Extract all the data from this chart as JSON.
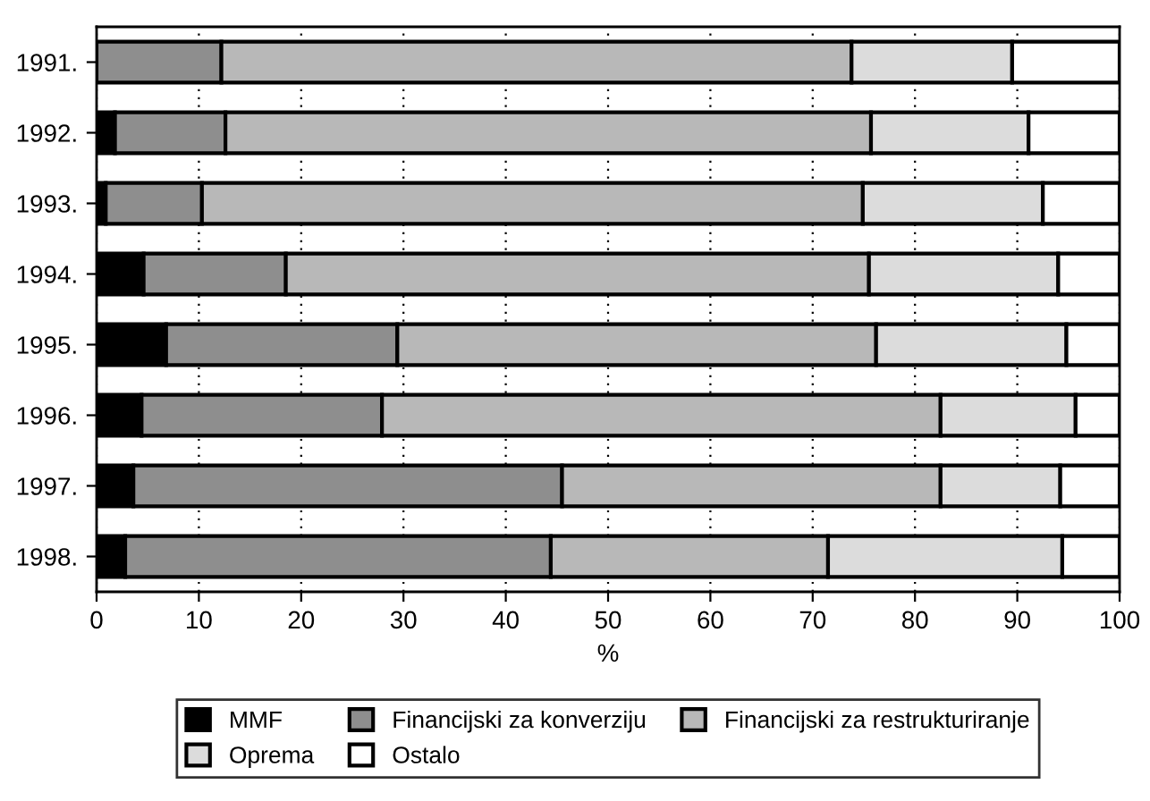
{
  "chart_data": {
    "type": "bar",
    "orientation": "horizontal",
    "stacked": true,
    "xlabel": "%",
    "categories": [
      "1991.",
      "1992.",
      "1993.",
      "1994.",
      "1995.",
      "1996.",
      "1997.",
      "1998."
    ],
    "series": [
      {
        "name": "MMF",
        "color": "#000000",
        "values": [
          0,
          1.8,
          0.9,
          4.6,
          6.8,
          4.4,
          3.6,
          2.8
        ]
      },
      {
        "name": "Financijski za konverziju",
        "color": "#8e8e8e",
        "values": [
          12.2,
          10.8,
          9.4,
          13.9,
          22.6,
          23.5,
          41.9,
          41.6
        ]
      },
      {
        "name": "Financijski za restrukturiranje",
        "color": "#b8b8b8",
        "values": [
          61.6,
          63.1,
          64.6,
          57.0,
          46.8,
          54.6,
          37.0,
          27.1
        ]
      },
      {
        "name": "Oprema",
        "color": "#dcdcdc",
        "values": [
          15.7,
          15.4,
          17.6,
          18.5,
          18.6,
          13.2,
          11.7,
          22.9
        ]
      },
      {
        "name": "Ostalo",
        "color": "#ffffff",
        "values": [
          10.5,
          8.9,
          7.5,
          6.0,
          5.2,
          4.3,
          5.8,
          5.6
        ]
      }
    ],
    "xlim": [
      0,
      100
    ],
    "xticks": [
      0,
      10,
      20,
      30,
      40,
      50,
      60,
      70,
      80,
      90,
      100
    ],
    "grid": "x",
    "legend": "bottom"
  }
}
